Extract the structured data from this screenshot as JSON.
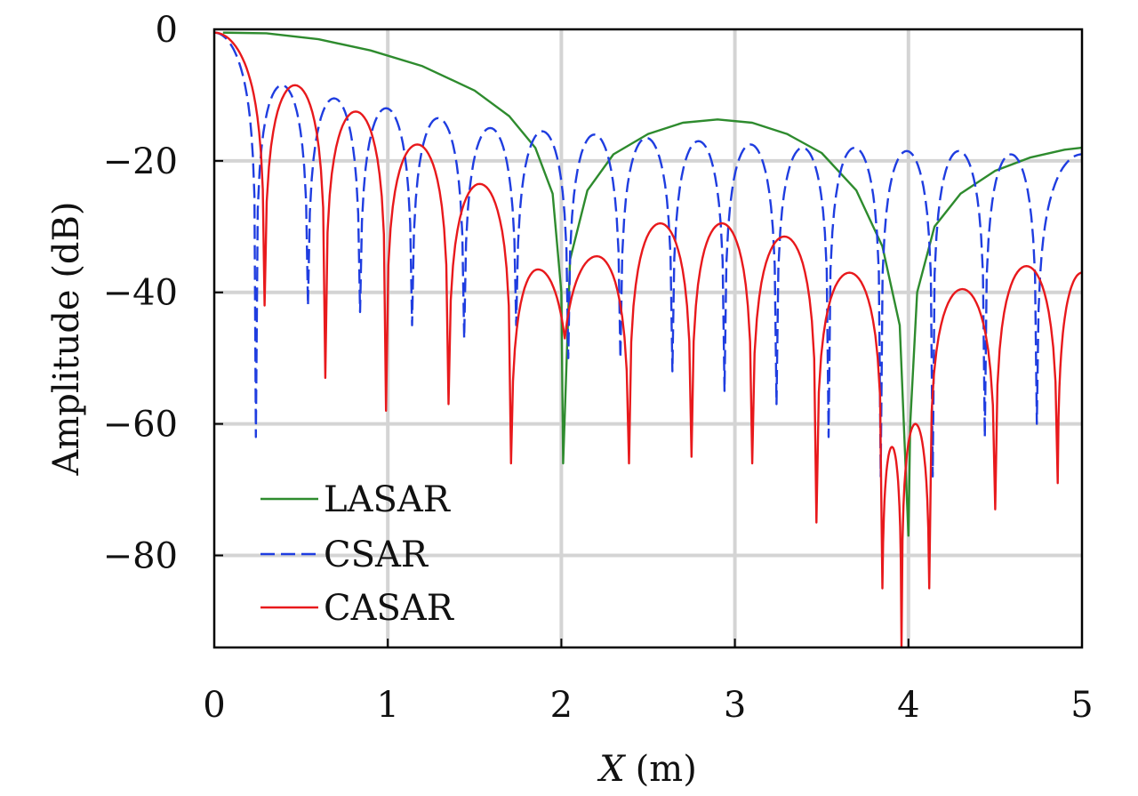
{
  "chart_data": {
    "type": "line",
    "xlabel_var": "X",
    "xlabel_unit": "(m)",
    "ylabel": "Amplitude (dB)",
    "xlim": [
      0,
      5
    ],
    "ylim": [
      -94,
      0
    ],
    "x_ticks": [
      0,
      1,
      2,
      3,
      4,
      5
    ],
    "y_ticks": [
      0,
      -20,
      -40,
      -60,
      -80
    ],
    "x_tick_labels": [
      "0",
      "1",
      "2",
      "3",
      "4",
      "5"
    ],
    "y_tick_labels": [
      "0",
      "−20",
      "−40",
      "−60",
      "−80"
    ],
    "grid": true,
    "legend_position": "bottom-left",
    "series": [
      {
        "name": "LASAR",
        "color": "#2e8b2e",
        "dash": "solid",
        "x": [
          0.05,
          0.3,
          0.6,
          0.9,
          1.2,
          1.5,
          1.7,
          1.85,
          1.95,
          2.0,
          2.01,
          2.05,
          2.15,
          2.3,
          2.5,
          2.7,
          2.9,
          3.1,
          3.3,
          3.5,
          3.7,
          3.85,
          3.95,
          4.0,
          4.01,
          4.05,
          4.15,
          4.3,
          4.5,
          4.7,
          4.9,
          5.0
        ],
        "y": [
          -0.5,
          -0.6,
          -1.5,
          -3.2,
          -5.6,
          -9.3,
          -13.2,
          -18.0,
          -25.0,
          -40.0,
          -66.0,
          -35.0,
          -24.5,
          -19.0,
          -15.9,
          -14.2,
          -13.7,
          -14.2,
          -15.9,
          -18.8,
          -24.5,
          -33.0,
          -45.0,
          -77.0,
          -60.0,
          -40.0,
          -30.0,
          -25.0,
          -21.5,
          -19.5,
          -18.3,
          -18.0
        ]
      },
      {
        "name": "CSAR",
        "color": "#1f3de0",
        "dash": "dashed",
        "lobe_left_edges": [
          0.0,
          0.24,
          0.54,
          0.84,
          1.14,
          1.44,
          1.74,
          2.04,
          2.34,
          2.64,
          2.94,
          3.24,
          3.54,
          3.84,
          4.14,
          4.44,
          4.74
        ],
        "lobe_right_edges": [
          0.24,
          0.54,
          0.84,
          1.14,
          1.44,
          1.74,
          2.04,
          2.34,
          2.64,
          2.94,
          3.24,
          3.54,
          3.84,
          4.14,
          4.44,
          4.74,
          5.0
        ],
        "lobe_peaks": [
          -0.5,
          -8.5,
          -10.5,
          -12.0,
          -13.5,
          -15.0,
          -15.5,
          -16.0,
          -16.5,
          -17.0,
          -17.5,
          -18.0,
          -18.0,
          -18.5,
          -18.5,
          -19.0,
          -19.0
        ],
        "null_depths": [
          -62.0,
          -42.0,
          -43.0,
          -45.0,
          -47.0,
          -45.0,
          -50.0,
          -50.0,
          -52.0,
          -55.0,
          -57.0,
          -62.0,
          -68.0,
          -68.0,
          -62.0,
          -60.0
        ]
      },
      {
        "name": "CASAR",
        "color": "#e8191c",
        "dash": "solid",
        "lobe_left_edges": [
          0.0,
          0.29,
          0.64,
          0.99,
          1.35,
          1.71,
          2.02,
          2.39,
          2.75,
          3.1,
          3.47,
          3.85,
          3.96,
          4.12,
          4.5,
          4.86
        ],
        "lobe_right_edges": [
          0.29,
          0.64,
          0.99,
          1.35,
          1.71,
          2.02,
          2.39,
          2.75,
          3.1,
          3.47,
          3.85,
          3.96,
          4.12,
          4.5,
          4.86,
          5.0
        ],
        "lobe_peaks": [
          -0.5,
          -8.5,
          -12.5,
          -17.5,
          -23.5,
          -36.5,
          -34.5,
          -29.5,
          -29.5,
          -31.5,
          -37.0,
          -63.5,
          -60.0,
          -39.5,
          -36.0,
          -37.0
        ],
        "null_depths": [
          -42.0,
          -53.0,
          -58.0,
          -57.0,
          -66.0,
          -47.0,
          -66.0,
          -65.0,
          -66.0,
          -75.0,
          -85.0,
          -94.0,
          -85.0,
          -73.0,
          -69.0
        ]
      }
    ]
  }
}
